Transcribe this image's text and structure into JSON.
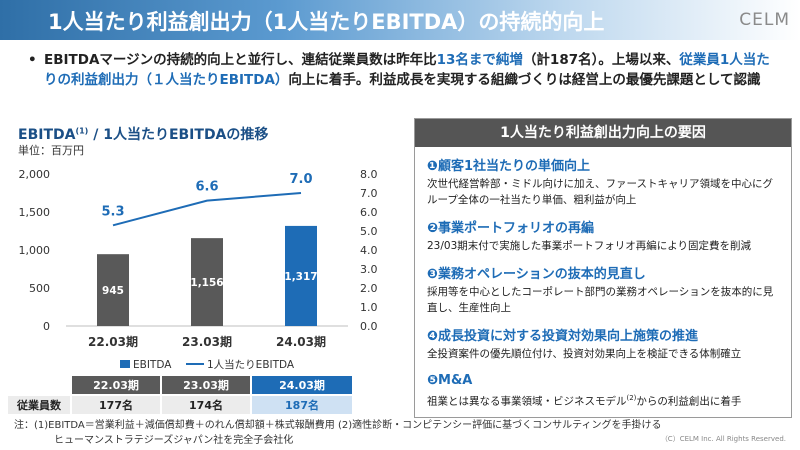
{
  "header": {
    "title": "1人当たり利益創出力（1人当たりEBITDA）の持続的向上",
    "logo": "CELM"
  },
  "lead": {
    "part1": "EBITDAマージンの持続的向上と並行し、連結従業員数は昨年比",
    "highlight1": "13名まで純増",
    "part2": "（計187名）。上場以来、",
    "highlight2": "従業員1人当たりの利益創出力（１人当たりEBITDA）",
    "part3": "向上に着手。利益成長を実現する組織づくりは経営上の最優先課題として認識"
  },
  "chart_title": {
    "main": "EBITDA",
    "sup": "(1)",
    "rest": " / 1人当たりEBITDAの推移"
  },
  "chart_unit": "単位：百万円",
  "chart_data": {
    "type": "bar",
    "categories": [
      "22.03期",
      "23.03期",
      "24.03期"
    ],
    "series": [
      {
        "name": "EBITDA",
        "values": [
          945,
          1156,
          1317
        ],
        "axis": "left",
        "labels": [
          "945",
          "1,156",
          "1,317"
        ]
      },
      {
        "name": "1人当たりEBITDA",
        "values": [
          5.3,
          6.6,
          7.0
        ],
        "axis": "right",
        "type": "line",
        "labels": [
          "5.3",
          "6.6",
          "7.0"
        ]
      }
    ],
    "left_ticks": [
      "0",
      "500",
      "1,000",
      "1,500",
      "2,000"
    ],
    "right_ticks": [
      "0.0",
      "1.0",
      "2.0",
      "3.0",
      "4.0",
      "5.0",
      "6.0",
      "7.0",
      "8.0"
    ],
    "ylim": [
      0,
      2000
    ],
    "y2lim": [
      0,
      8
    ],
    "colors": {
      "bar_gray": "#595959",
      "bar_blue": "#1e6cb6",
      "line": "#1e6cb6"
    },
    "legend_position": "bottom"
  },
  "table": {
    "headers": [
      "22.03期",
      "23.03期",
      "24.03期"
    ],
    "row_label": "従業員数",
    "values": [
      "177名",
      "174名",
      "187名"
    ]
  },
  "panel": {
    "title": "1人当たり利益創出力向上の要因",
    "factors": [
      {
        "title": "❶顧客1社当たりの単価向上",
        "desc": "次世代経営幹部・ミドル向けに加え、ファーストキャリア領域を中心にグループ全体の一社当たり単価、粗利益が向上"
      },
      {
        "title": "❷事業ポートフォリオの再編",
        "desc": "23/03期末付で実施した事業ポートフォリオ再編により固定費を削減"
      },
      {
        "title": "❸業務オペレーションの抜本的見直し",
        "desc": "採用等を中心としたコーポレート部門の業務オペレーションを抜本的に見直し、生産性向上"
      },
      {
        "title": "❹成長投資に対する投資対効果向上施策の推進",
        "desc": "全投資案件の優先順位付け、投資対効果向上を検証できる体制確立"
      },
      {
        "title": "❺M&A",
        "desc_before": "祖業とは異なる事業領域・ビジネスモデル",
        "desc_sup": "(2)",
        "desc_after": "からの利益創出に着手"
      }
    ]
  },
  "notes": {
    "line1": "注：(1)EBITDA＝営業利益＋減価償却費＋のれん償却額＋株式報酬費用 (2)適性診断・コンピテンシー評価に基づくコンサルティングを手掛ける",
    "line2": "ヒューマンストラテジーズジャパン社を完全子会社化"
  },
  "copyright": "（C）CELM Inc. All Rights Reserved."
}
